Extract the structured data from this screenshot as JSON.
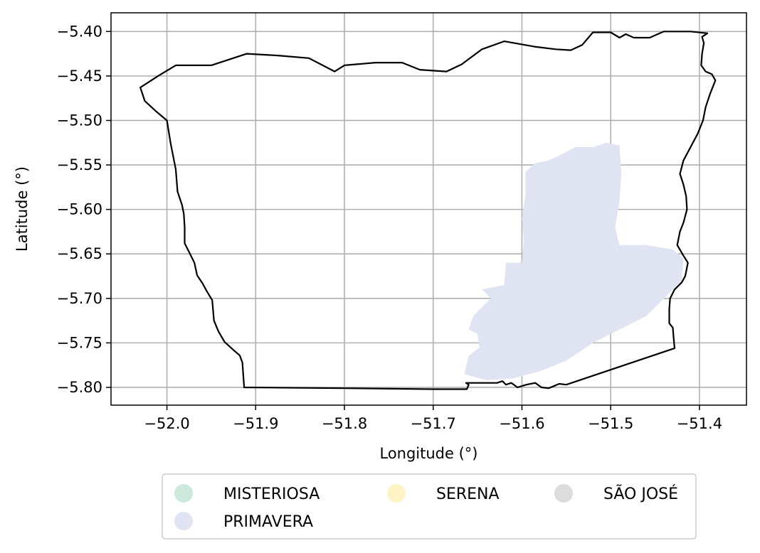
{
  "chart_data": {
    "type": "map",
    "xlabel": "Longitude (°)",
    "ylabel": "Latitude (°)",
    "xlim": [
      -52.063,
      -51.347
    ],
    "ylim": [
      -5.82,
      -5.379
    ],
    "grid": true,
    "x_ticks": [
      -52.0,
      -51.9,
      -51.8,
      -51.7,
      -51.6,
      -51.5,
      -51.4
    ],
    "x_tick_labels": [
      "−52.0",
      "−51.9",
      "−51.8",
      "−51.7",
      "−51.6",
      "−51.5",
      "−51.4"
    ],
    "y_ticks": [
      -5.4,
      -5.45,
      -5.5,
      -5.55,
      -5.6,
      -5.65,
      -5.7,
      -5.75,
      -5.8
    ],
    "y_tick_labels": [
      "−5.40",
      "−5.45",
      "−5.50",
      "−5.55",
      "−5.60",
      "−5.65",
      "−5.70",
      "−5.75",
      "−5.80"
    ],
    "boundary": [
      [
        -52.03,
        -5.463
      ],
      [
        -52.025,
        -5.478
      ],
      [
        -52.012,
        -5.49
      ],
      [
        -52.0,
        -5.5
      ],
      [
        -51.996,
        -5.525
      ],
      [
        -51.99,
        -5.555
      ],
      [
        -51.988,
        -5.58
      ],
      [
        -51.983,
        -5.595
      ],
      [
        -51.981,
        -5.605
      ],
      [
        -51.98,
        -5.62
      ],
      [
        -51.98,
        -5.638
      ],
      [
        -51.975,
        -5.648
      ],
      [
        -51.969,
        -5.66
      ],
      [
        -51.966,
        -5.674
      ],
      [
        -51.96,
        -5.683
      ],
      [
        -51.955,
        -5.692
      ],
      [
        -51.949,
        -5.702
      ],
      [
        -51.947,
        -5.725
      ],
      [
        -51.942,
        -5.737
      ],
      [
        -51.935,
        -5.749
      ],
      [
        -51.925,
        -5.758
      ],
      [
        -51.918,
        -5.764
      ],
      [
        -51.915,
        -5.772
      ],
      [
        -51.913,
        -5.8
      ],
      [
        -51.8,
        -5.801
      ],
      [
        -51.7,
        -5.802
      ],
      [
        -51.662,
        -5.802
      ],
      [
        -51.66,
        -5.797
      ],
      [
        -51.663,
        -5.795
      ],
      [
        -51.642,
        -5.795
      ],
      [
        -51.628,
        -5.795
      ],
      [
        -51.622,
        -5.793
      ],
      [
        -51.618,
        -5.797
      ],
      [
        -51.612,
        -5.795
      ],
      [
        -51.605,
        -5.8
      ],
      [
        -51.595,
        -5.797
      ],
      [
        -51.585,
        -5.795
      ],
      [
        -51.578,
        -5.8
      ],
      [
        -51.57,
        -5.801
      ],
      [
        -51.565,
        -5.799
      ],
      [
        -51.558,
        -5.796
      ],
      [
        -51.55,
        -5.797
      ],
      [
        -51.428,
        -5.756
      ],
      [
        -51.429,
        -5.745
      ],
      [
        -51.43,
        -5.733
      ],
      [
        -51.434,
        -5.728
      ],
      [
        -51.434,
        -5.712
      ],
      [
        -51.433,
        -5.7
      ],
      [
        -51.428,
        -5.69
      ],
      [
        -51.42,
        -5.682
      ],
      [
        -51.416,
        -5.675
      ],
      [
        -51.413,
        -5.66
      ],
      [
        -51.418,
        -5.652
      ],
      [
        -51.425,
        -5.64
      ],
      [
        -51.422,
        -5.625
      ],
      [
        -51.418,
        -5.615
      ],
      [
        -51.414,
        -5.6
      ],
      [
        -51.415,
        -5.585
      ],
      [
        -51.418,
        -5.572
      ],
      [
        -51.422,
        -5.56
      ],
      [
        -51.418,
        -5.545
      ],
      [
        -51.41,
        -5.53
      ],
      [
        -51.402,
        -5.515
      ],
      [
        -51.396,
        -5.5
      ],
      [
        -51.393,
        -5.485
      ],
      [
        -51.388,
        -5.47
      ],
      [
        -51.382,
        -5.455
      ],
      [
        -51.386,
        -5.448
      ],
      [
        -51.393,
        -5.445
      ],
      [
        -51.398,
        -5.438
      ],
      [
        -51.397,
        -5.425
      ],
      [
        -51.395,
        -5.413
      ],
      [
        -51.397,
        -5.406
      ],
      [
        -51.391,
        -5.402
      ],
      [
        -51.41,
        -5.4
      ],
      [
        -51.44,
        -5.4
      ],
      [
        -51.447,
        -5.403
      ],
      [
        -51.456,
        -5.407
      ],
      [
        -51.474,
        -5.407
      ],
      [
        -51.483,
        -5.403
      ],
      [
        -51.49,
        -5.407
      ],
      [
        -51.5,
        -5.401
      ],
      [
        -51.52,
        -5.401
      ],
      [
        -51.532,
        -5.415
      ],
      [
        -51.545,
        -5.421
      ],
      [
        -51.562,
        -5.42
      ],
      [
        -51.586,
        -5.417
      ],
      [
        -51.62,
        -5.411
      ],
      [
        -51.645,
        -5.42
      ],
      [
        -51.668,
        -5.437
      ],
      [
        -51.685,
        -5.445
      ],
      [
        -51.715,
        -5.443
      ],
      [
        -51.735,
        -5.435
      ],
      [
        -51.765,
        -5.435
      ],
      [
        -51.8,
        -5.438
      ],
      [
        -51.811,
        -5.445
      ],
      [
        -51.84,
        -5.43
      ],
      [
        -51.875,
        -5.427
      ],
      [
        -51.91,
        -5.425
      ],
      [
        -51.95,
        -5.438
      ],
      [
        -51.99,
        -5.438
      ],
      [
        -52.01,
        -5.45
      ],
      [
        -52.03,
        -5.463
      ]
    ],
    "regions": [
      {
        "name": "PRIMAVERA",
        "color": "#dfe3f2",
        "polygon": [
          [
            -51.665,
            -5.785
          ],
          [
            -51.66,
            -5.765
          ],
          [
            -51.648,
            -5.755
          ],
          [
            -51.65,
            -5.74
          ],
          [
            -51.66,
            -5.735
          ],
          [
            -51.655,
            -5.72
          ],
          [
            -51.635,
            -5.7
          ],
          [
            -51.645,
            -5.69
          ],
          [
            -51.62,
            -5.685
          ],
          [
            -51.618,
            -5.66
          ],
          [
            -51.6,
            -5.66
          ],
          [
            -51.598,
            -5.635
          ],
          [
            -51.6,
            -5.61
          ],
          [
            -51.596,
            -5.585
          ],
          [
            -51.596,
            -5.558
          ],
          [
            -51.585,
            -5.548
          ],
          [
            -51.57,
            -5.545
          ],
          [
            -51.555,
            -5.538
          ],
          [
            -51.54,
            -5.53
          ],
          [
            -51.52,
            -5.53
          ],
          [
            -51.505,
            -5.525
          ],
          [
            -51.49,
            -5.528
          ],
          [
            -51.488,
            -5.56
          ],
          [
            -51.49,
            -5.59
          ],
          [
            -51.495,
            -5.62
          ],
          [
            -51.49,
            -5.64
          ],
          [
            -51.46,
            -5.64
          ],
          [
            -51.43,
            -5.645
          ],
          [
            -51.418,
            -5.655
          ],
          [
            -51.42,
            -5.68
          ],
          [
            -51.44,
            -5.7
          ],
          [
            -51.46,
            -5.72
          ],
          [
            -51.49,
            -5.735
          ],
          [
            -51.52,
            -5.75
          ],
          [
            -51.55,
            -5.77
          ],
          [
            -51.58,
            -5.782
          ],
          [
            -51.61,
            -5.79
          ],
          [
            -51.64,
            -5.792
          ],
          [
            -51.665,
            -5.785
          ]
        ]
      }
    ]
  },
  "legend": {
    "items": [
      {
        "label": "MISTERIOSA",
        "color": "#cce9dc"
      },
      {
        "label": "SERENA",
        "color": "#fdf3c4"
      },
      {
        "label": "SÃO JOSÉ",
        "color": "#dcdcdc"
      },
      {
        "label": "PRIMAVERA",
        "color": "#dfe3f2"
      }
    ]
  }
}
